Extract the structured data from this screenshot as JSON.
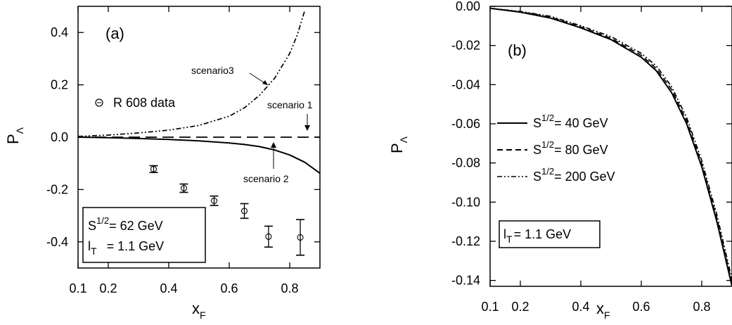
{
  "chart_data": [
    {
      "type": "line",
      "panel_label": "(a)",
      "xlabel": {
        "main": "x",
        "sub": "F"
      },
      "ylabel": {
        "main": "P",
        "sub": "Λ"
      },
      "xlim": [
        0.1,
        0.9
      ],
      "ylim": [
        -0.5,
        0.5
      ],
      "x_ticks": [
        "0.1",
        "0.2",
        "0.4",
        "0.6",
        "0.8"
      ],
      "y_ticks": [
        "0.4",
        "0.2",
        "0.0",
        "-0.2",
        "-0.4"
      ],
      "grid": false,
      "series": [
        {
          "name": "scenario 1",
          "style": "long-dash",
          "x": [
            0.1,
            0.9
          ],
          "y": [
            0.0,
            0.0
          ]
        },
        {
          "name": "scenario 2",
          "style": "solid",
          "x": [
            0.1,
            0.2,
            0.3,
            0.4,
            0.5,
            0.6,
            0.65,
            0.7,
            0.75,
            0.8,
            0.85,
            0.9
          ],
          "y": [
            0.0,
            -0.002,
            -0.005,
            -0.009,
            -0.014,
            -0.022,
            -0.028,
            -0.036,
            -0.049,
            -0.068,
            -0.096,
            -0.138
          ]
        },
        {
          "name": "scenario3",
          "style": "dash-dot-dot",
          "x": [
            0.1,
            0.2,
            0.3,
            0.4,
            0.5,
            0.6,
            0.65,
            0.7,
            0.75,
            0.8,
            0.825,
            0.85
          ],
          "y": [
            0.003,
            0.008,
            0.016,
            0.027,
            0.045,
            0.08,
            0.112,
            0.16,
            0.225,
            0.32,
            0.39,
            0.485
          ]
        },
        {
          "name": "R 608 data",
          "style": "markers",
          "x": [
            0.35,
            0.45,
            0.55,
            0.65,
            0.73,
            0.835
          ],
          "y": [
            -0.122,
            -0.195,
            -0.243,
            -0.282,
            -0.38,
            -0.383
          ],
          "err": [
            0.013,
            0.016,
            0.018,
            0.028,
            0.04,
            0.068
          ]
        }
      ],
      "legend": {
        "marker_label": "R 608 data"
      },
      "annotations": [
        "scenario3",
        "scenario 1",
        "scenario 2"
      ],
      "info_box": {
        "line1_main": "S",
        "line1_sup": "1/2",
        "line1_rest": "= 62 GeV",
        "line2_main": "l",
        "line2_sub": "T",
        "line2_rest": "= 1.1 GeV"
      }
    },
    {
      "type": "line",
      "panel_label": "(b)",
      "xlabel": {
        "main": "x",
        "sub": "F"
      },
      "ylabel": {
        "main": "P",
        "sub": "Λ"
      },
      "xlim": [
        0.1,
        0.9
      ],
      "ylim": [
        -0.143,
        0.0
      ],
      "x_ticks": [
        "0.1",
        "0.2",
        "0.4",
        "0.6",
        "0.8"
      ],
      "y_ticks": [
        "0.00",
        "-0.02",
        "-0.04",
        "-0.06",
        "-0.08",
        "-0.10",
        "-0.12",
        "-0.14"
      ],
      "grid": false,
      "series": [
        {
          "name_main": "S",
          "name_sup": "1/2",
          "name_rest": "= 40 GeV",
          "style": "solid",
          "x": [
            0.1,
            0.2,
            0.3,
            0.4,
            0.5,
            0.6,
            0.65,
            0.7,
            0.75,
            0.8,
            0.85,
            0.9
          ],
          "y": [
            -0.001,
            -0.003,
            -0.006,
            -0.011,
            -0.017,
            -0.026,
            -0.033,
            -0.044,
            -0.06,
            -0.082,
            -0.11,
            -0.143
          ]
        },
        {
          "name_main": "S",
          "name_sup": "1/2",
          "name_rest": "= 80 GeV",
          "style": "dash",
          "x": [
            0.1,
            0.2,
            0.3,
            0.4,
            0.5,
            0.6,
            0.65,
            0.7,
            0.75,
            0.8,
            0.85,
            0.9
          ],
          "y": [
            -0.001,
            -0.0028,
            -0.0055,
            -0.0105,
            -0.0163,
            -0.025,
            -0.0318,
            -0.0425,
            -0.0585,
            -0.0805,
            -0.1083,
            -0.1413
          ]
        },
        {
          "name_main": "S",
          "name_sup": "1/2",
          "name_rest": "= 200 GeV",
          "style": "dash-dot-dot",
          "x": [
            0.1,
            0.2,
            0.3,
            0.4,
            0.5,
            0.6,
            0.65,
            0.7,
            0.75,
            0.8,
            0.85,
            0.9
          ],
          "y": [
            -0.001,
            -0.0026,
            -0.0051,
            -0.0099,
            -0.0155,
            -0.024,
            -0.0305,
            -0.041,
            -0.0568,
            -0.0788,
            -0.1065,
            -0.1395
          ]
        }
      ],
      "info_box": {
        "line1_main": "l",
        "line1_sub": "T",
        "line1_rest": "= 1.1 GeV"
      }
    }
  ]
}
